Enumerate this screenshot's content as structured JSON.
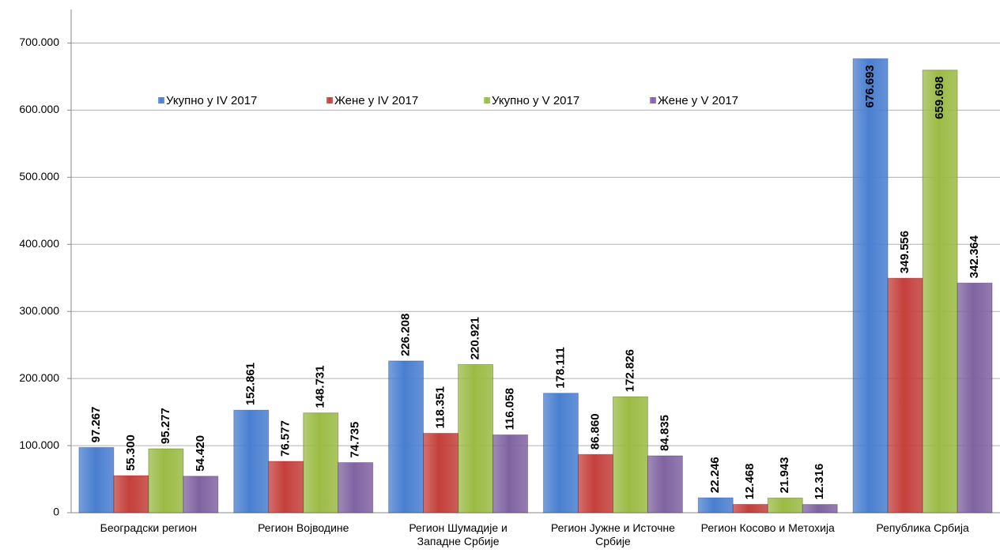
{
  "chart_data": {
    "type": "bar",
    "categories": [
      "Београдски регион",
      "Регион Војводине",
      "Регион Шумадије и Западне Србије",
      "Регион Јужне и Источне Србије",
      "Регион Косово и Метохија",
      "Република Србија"
    ],
    "series": [
      {
        "name": "Укупно у IV 2017",
        "color": "#4a7fd0",
        "values": [
          97267,
          152861,
          226208,
          178111,
          22246,
          676693
        ],
        "value_labels": [
          "97.267",
          "152.861",
          "226.208",
          "178.111",
          "22.246",
          "676.693"
        ]
      },
      {
        "name": "Жене у IV 2017",
        "color": "#c4403c",
        "values": [
          55300,
          76577,
          118351,
          86860,
          12468,
          349556
        ],
        "value_labels": [
          "55.300",
          "76.577",
          "118.351",
          "86.860",
          "12.468",
          "349.556"
        ]
      },
      {
        "name": "Укупно у V 2017",
        "color": "#9bbb45",
        "values": [
          95277,
          148731,
          220921,
          172826,
          21943,
          659698
        ],
        "value_labels": [
          "95.277",
          "148.731",
          "220.921",
          "172.826",
          "21.943",
          "659.698"
        ]
      },
      {
        "name": "Жене у V 2017",
        "color": "#8064a2",
        "values": [
          54420,
          74735,
          116058,
          84835,
          12316,
          342364
        ],
        "value_labels": [
          "54.420",
          "74.735",
          "116.058",
          "84.835",
          "12.316",
          "342.364"
        ]
      }
    ],
    "ylim": [
      0,
      750000
    ],
    "yticks": [
      0,
      {
        "value": 100000,
        "label": "100.000"
      },
      {
        "value": 200000,
        "label": "200.000"
      },
      {
        "value": 300000,
        "label": "300.000"
      },
      {
        "value": 400000,
        "label": "400.000"
      },
      {
        "value": 500000,
        "label": "500.000"
      },
      {
        "value": 600000,
        "label": "600.000"
      },
      {
        "value": 700000,
        "label": "700.000"
      }
    ],
    "grid": true
  }
}
